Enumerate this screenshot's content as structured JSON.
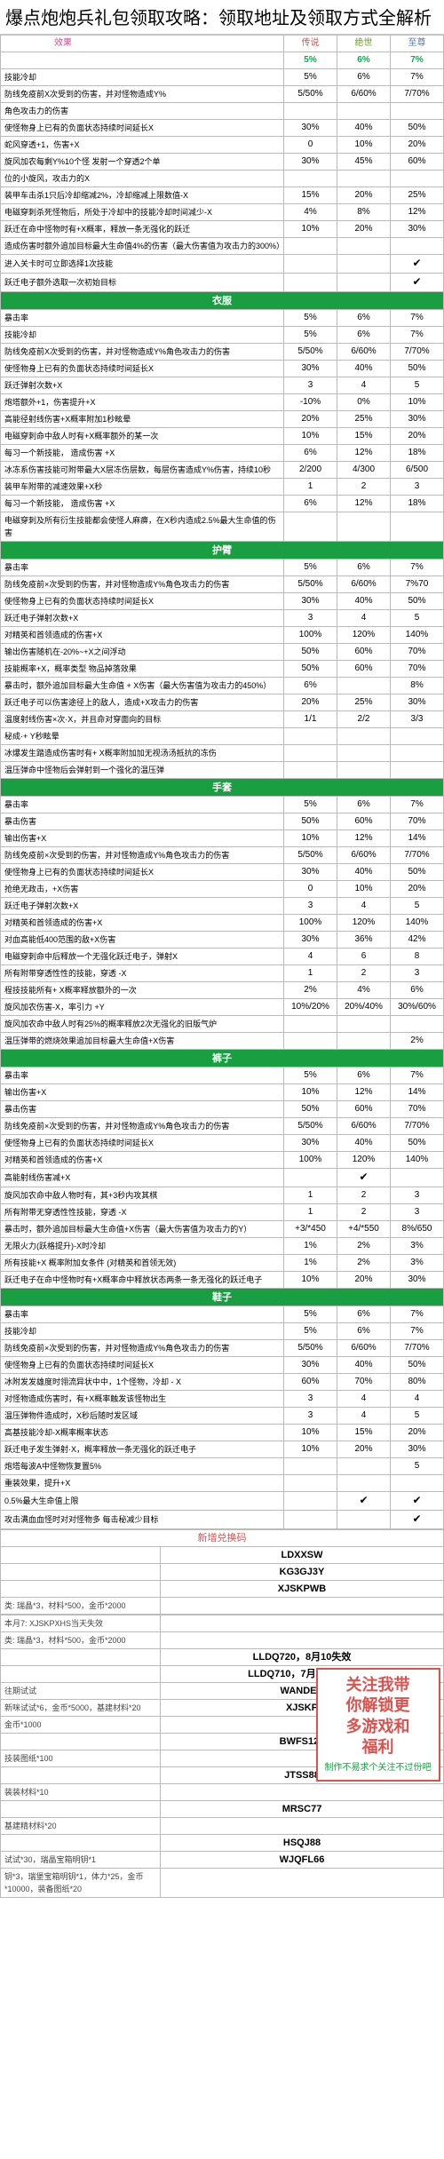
{
  "title": "爆点炮炮兵礼包领取攻略：领取地址及领取方式全解析",
  "header": {
    "effect": "效果",
    "c1": "传说",
    "c2": "绝世",
    "c3": "至尊",
    "p1": "5%",
    "p2": "6%",
    "p3": "7%"
  },
  "sections": [
    {
      "name": null,
      "rows": [
        [
          "技能冷却",
          "5%",
          "6%",
          "7%"
        ],
        [
          "防线免疫前X次受到的伤害，并对怪物造成Y%",
          "5/50%",
          "6/60%",
          "7/70%"
        ],
        [
          "角色攻击力的伤害",
          "",
          "",
          ""
        ],
        [
          "使怪物身上已有的负面状态持续时间延长X",
          "30%",
          "40%",
          "50%"
        ],
        [
          "蛇风穿透+1，伤害+X",
          "0",
          "10%",
          "20%"
        ],
        [
          "旋风加农每剩Y%10个怪 发射一个穿透2个单",
          "30%",
          "45%",
          "60%"
        ],
        [
          "位的小旋风，攻击力的X",
          "",
          "",
          ""
        ],
        [
          "装甲车击杀1只后冷却缩减2%，冷却缩减上限数值-X",
          "15%",
          "20%",
          "25%"
        ],
        [
          "电磁穿刺杀死怪物后，所处于冷却中的技能冷却时间减少-X",
          "4%",
          "8%",
          "12%"
        ],
        [
          "跃迁在命中怪物时有+X概率，释放一条无强化的跃迁",
          "10%",
          "20%",
          "30%"
        ],
        [
          "造成伤害时额外追加目标最大生命值4%的伤害（最大伤害值为攻击力的300%）",
          "",
          "",
          ""
        ],
        [
          "进入关卡时可立即选择1次技能",
          "",
          "",
          "✔"
        ],
        [
          "跃迁电子额外选取一次初始目标",
          "",
          "",
          "✔"
        ]
      ]
    },
    {
      "name": "衣服",
      "rows": [
        [
          "暴击率",
          "5%",
          "6%",
          "7%"
        ],
        [
          "技能冷却",
          "5%",
          "6%",
          "7%"
        ],
        [
          "防线免疫前X次受到的伤害，并对怪物造成Y%角色攻击力的伤害",
          "5/50%",
          "6/60%",
          "7/70%"
        ],
        [
          "使怪物身上已有的负面状态持续时间延长X",
          "30%",
          "40%",
          "50%"
        ],
        [
          "跃迁弹射次数+X",
          "3",
          "4",
          "5"
        ],
        [
          "炮塔额外+1，伤害提升+X",
          "-10%",
          "0%",
          "10%"
        ],
        [
          "高能径射线伤害+X概率附加1秒眩晕",
          "20%",
          "25%",
          "30%"
        ],
        [
          "电磁穿刺命中敌人时有+X概率额外的某一次",
          "10%",
          "15%",
          "20%"
        ],
        [
          "每习一个新技能， 造成伤害 +X",
          "6%",
          "12%",
          "18%"
        ],
        [
          "冰冻系伤害技能可附带最大X层冻伤层数，每层伤害造成Y%伤害，持续10秒",
          "2/200",
          "4/300",
          "6/500"
        ],
        [
          "装甲车附带的减速效果+X秒",
          "1",
          "2",
          "3"
        ],
        [
          "每习一个新技能， 造成伤害 +X",
          "6%",
          "12%",
          "18%"
        ],
        [
          "电磁穿刺及所有衍生技能都会使怪人麻痹，在X秒内造成2.5%最大生命值的伤害",
          "",
          "",
          ""
        ]
      ]
    },
    {
      "name": "护臂",
      "rows": [
        [
          "暴击率",
          "5%",
          "6%",
          "7%"
        ],
        [
          "防线免疫前×次受到的伤害，并对怪物造成Y%角色攻击力的伤害",
          "5/50%",
          "6/60%",
          "7%70"
        ],
        [
          "使怪物身上已有的负面状态持续时间延长X",
          "30%",
          "40%",
          "50%"
        ],
        [
          "跃迁电子弹射次数+X",
          "3",
          "4",
          "5"
        ],
        [
          "对精英和首领造成的伤害+X",
          "100%",
          "120%",
          "140%"
        ],
        [
          "输出伤害随机在-20%~+X之间浮动",
          "50%",
          "60%",
          "70%"
        ],
        [
          "技能概率+X，概率类型 物品掉落效果",
          "50%",
          "60%",
          "70%"
        ],
        [
          "暴击时，额外追加目标最大生命值 + X伤害（最大伤害值为攻击力的450%）",
          "6%",
          "",
          "8%"
        ],
        [
          "跃迁电子可以伤害途径上的敌人，造成+X攻击力的伤害",
          "20%",
          "25%",
          "30%"
        ],
        [
          "温度射线伤害×次·X，并且命对穿面向的目标",
          "1/1",
          "2/2",
          "3/3"
        ],
        [
          "秘成·+ Y秒眩晕",
          "",
          "",
          ""
        ],
        [
          "冰爆发生踏造成伤害时有+ X概率附加加无视汤汤抵抗的冻伤",
          "",
          "",
          ""
        ],
        [
          "温压弹命中怪物后会弹射到一个强化的温压弹",
          "",
          "",
          ""
        ]
      ]
    },
    {
      "name": "手套",
      "rows": [
        [
          "暴击率",
          "5%",
          "6%",
          "7%"
        ],
        [
          "暴击伤害",
          "50%",
          "60%",
          "70%"
        ],
        [
          "输出伤害+X",
          "10%",
          "12%",
          "14%"
        ],
        [
          "防线免疫前×次受到的伤害，并对怪物造成Y%角色攻击力的伤害",
          "5/50%",
          "6/60%",
          "7/70%"
        ],
        [
          "使怪物身上已有的负面状态持续时间延长X",
          "30%",
          "40%",
          "50%"
        ],
        [
          "抢绝无政击，+X伤害",
          "0",
          "10%",
          "20%"
        ],
        [
          "跃迁电子弹射次数+X",
          "3",
          "4",
          "5"
        ],
        [
          "对精英和首领造成的伤害+X",
          "100%",
          "120%",
          "140%"
        ],
        [
          "对血高能低400范围的敌+X伤害",
          "30%",
          "36%",
          "42%"
        ],
        [
          "电磁穿刺命中后释放一个无强化跃迁电子，弹射X",
          "4",
          "6",
          "8"
        ],
        [
          "所有附带穿透性性的技能，穿透 -X",
          "1",
          "2",
          "3"
        ],
        [
          "程技技能所有+ X概率释放额外的一次",
          "2%",
          "4%",
          "6%"
        ],
        [
          "旋风加农伤害-X，率引力 +Y",
          "10%/20%",
          "20%/40%",
          "30%/60%"
        ],
        [
          "旋风加农命中敌人时有25%的概率释放2次无强化的旧版气炉",
          "",
          "",
          ""
        ],
        [
          "温压弹带的燃烧效果追加目标最大生命值+X伤害",
          "",
          "",
          "2%"
        ]
      ]
    },
    {
      "name": "裤子",
      "rows": [
        [
          "暴击率",
          "5%",
          "6%",
          "7%"
        ],
        [
          "输出伤害+X",
          "10%",
          "12%",
          "14%"
        ],
        [
          "暴击伤害",
          "50%",
          "60%",
          "70%"
        ],
        [
          "防线免疫前×次受到的伤害，并对怪物造成Y%角色攻击力的伤害",
          "5/50%",
          "6/60%",
          "7/70%"
        ],
        [
          "使怪物身上已有的负面状态持续时间延长X",
          "30%",
          "40%",
          "50%"
        ],
        [
          "对精英和首领造成的伤害+X",
          "100%",
          "120%",
          "140%"
        ],
        [
          "高能射线伤害减+X",
          "",
          "✔",
          ""
        ],
        [
          "旋风加农命中敌人物时有，其+3秒内攻其棋",
          "1",
          "2",
          "3"
        ],
        [
          "所有附带无穿透性性技能，穿透 -X",
          "1",
          "2",
          "3"
        ],
        [
          "暴击时，额外追加目标最大生命值+X伤害（最大伤害值为攻击力的Y）",
          "+3/*450",
          "+4/*550",
          "8%/650"
        ],
        [
          "无限火力(跃格提升)-X时冷却",
          "1%",
          "2%",
          "3%"
        ],
        [
          "所有技能+X 概率附加女条件 (对精英和首领无效)",
          "1%",
          "2%",
          "3%"
        ],
        [
          "跃迁电子在命中怪物时有+X概率命中释放状态两条一条无强化的跃迁电子",
          "10%",
          "20%",
          "30%"
        ]
      ]
    },
    {
      "name": "鞋子",
      "rows": [
        [
          "暴击率",
          "5%",
          "6%",
          "7%"
        ],
        [
          "技能冷却",
          "5%",
          "6%",
          "7%"
        ],
        [
          "防线免疫前×次受到的伤害，并对怪物造成Y%角色攻击力的伤害",
          "5/50%",
          "6/60%",
          "7/70%"
        ],
        [
          "使怪物身上已有的负面状态持续时间延长X",
          "30%",
          "40%",
          "50%"
        ],
        [
          "冰附发发雄度时翎流异状中中，1个怪物，冷却 - X",
          "60%",
          "70%",
          "80%"
        ],
        [
          "对怪物造成伤害时，有+X概率触发该怪物出生",
          "3",
          "4",
          "4"
        ],
        [
          "温压弹物件造成时，X秒后随时发区域",
          "3",
          "4",
          "5"
        ],
        [
          "高基技能冷却-X概率概率状态",
          "10%",
          "15%",
          "20%"
        ],
        [
          "跃迁电子发生弹射·X，概率释放一条无强化的跃迁电子",
          "10%",
          "20%",
          "30%"
        ],
        [
          "炮塔每波A中怪物恢复置5%",
          "",
          "",
          "5"
        ],
        [
          "重装效果，提升+X",
          "",
          "",
          ""
        ],
        [
          "0.5%最大生命值上限",
          "",
          "✔",
          "✔"
        ],
        [
          "攻击满血血怪时对对怪物多 每击秘减少目标",
          "",
          "",
          "✔"
        ]
      ]
    }
  ],
  "codes": {
    "header": "新增兑换码",
    "items": [
      {
        "code": "LDXXSW",
        "desc": ""
      },
      {
        "code": "KG3GJ3Y",
        "desc": ""
      },
      {
        "code": "XJSKPWB",
        "desc": ""
      },
      {
        "code": "",
        "desc": "类: 瑞晶*3，材料*500，金币*2000"
      },
      {
        "code": "",
        "desc": "本月7: XJSKPXHS当天失效"
      },
      {
        "code": "",
        "desc": "类: 瑞晶*3，材料*500，金币*2000"
      },
      {
        "code": "LLDQ720，8月10失效",
        "desc": ""
      },
      {
        "code": "LLDQ710，7月31号失效",
        "desc": ""
      },
      {
        "code": "WANDER",
        "desc": "往期试试"
      },
      {
        "code": "XJSKP",
        "desc": "新咪试试*6，金币*5000，基建材料*20"
      },
      {
        "code": "",
        "desc": "金币*1000"
      },
      {
        "code": "BWFS123",
        "desc": ""
      },
      {
        "code": "",
        "desc": "技装图纸*100"
      },
      {
        "code": "JTSS88",
        "desc": ""
      },
      {
        "code": "",
        "desc": "装装材料*10"
      },
      {
        "code": "MRSC77",
        "desc": ""
      },
      {
        "code": "",
        "desc": "基建精材料*20"
      },
      {
        "code": "HSQJ88",
        "desc": ""
      },
      {
        "code": "WJQFL66",
        "desc": "试试*30，瑞晶宝箱明钥*1"
      },
      {
        "code": "",
        "desc": "钥*3，瑞堡宝箱明钥*1，体力*25，金币*10000，装备图纸*20"
      }
    ]
  },
  "promo": {
    "l1": "关注我带",
    "l2": "你解锁更",
    "l3": "多游戏和",
    "l4": "福利",
    "sub": "制作不易求个关注不过份吧"
  }
}
